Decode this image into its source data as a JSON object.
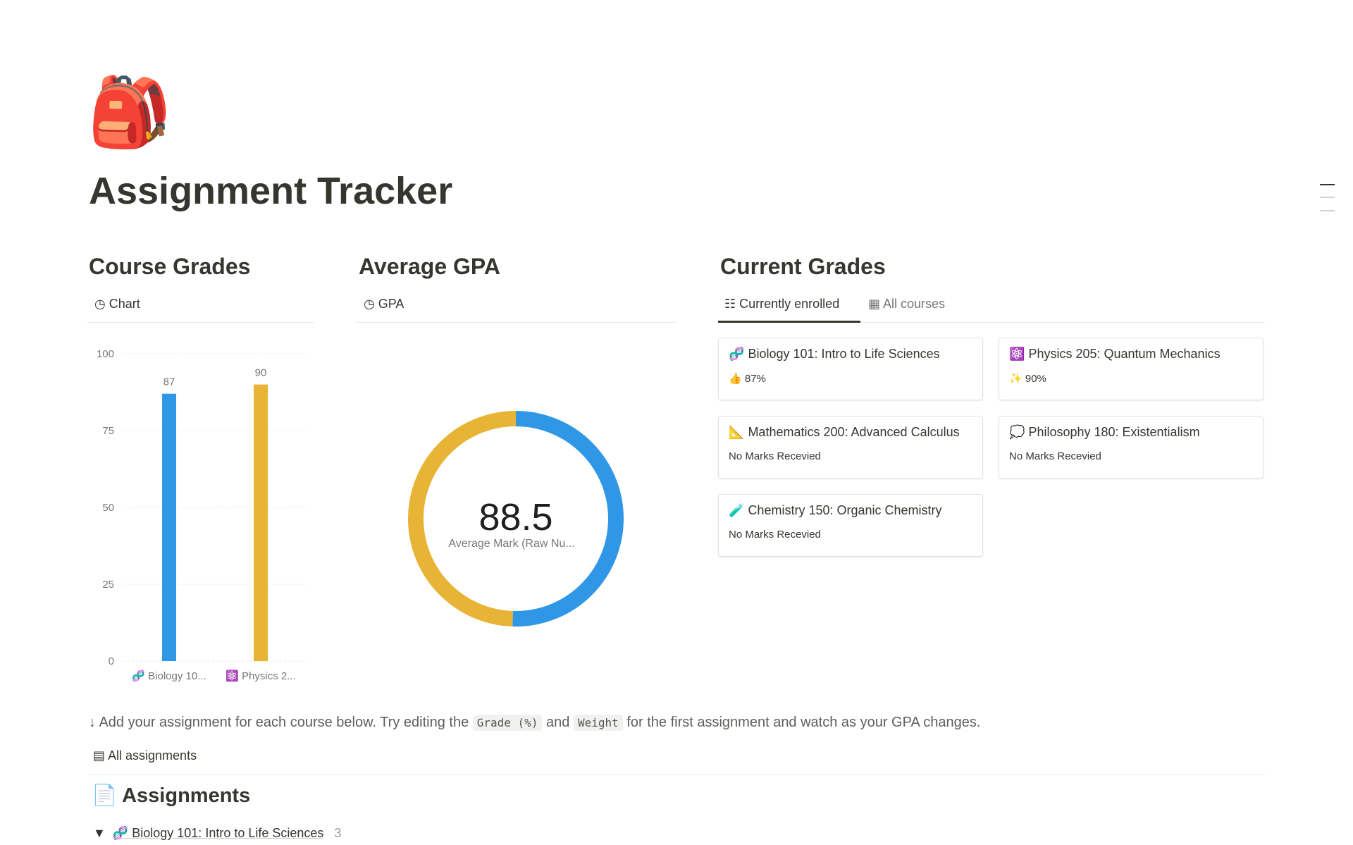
{
  "page": {
    "icon": "🎒",
    "title": "Assignment Tracker",
    "sections": {
      "course_grades": {
        "heading": "Course Grades",
        "tab": "Chart"
      },
      "average_gpa": {
        "heading": "Average GPA",
        "tab": "GPA"
      },
      "current_grades": {
        "heading": "Current Grades",
        "tabs": [
          "Currently enrolled",
          "All courses"
        ]
      }
    },
    "cards": [
      {
        "icon": "🧬",
        "title": "Biology 101: Intro to Life Sciences",
        "grade_icon": "👍",
        "grade": "87%"
      },
      {
        "icon": "⚛️",
        "title": "Physics 205: Quantum Mechanics",
        "grade_icon": "✨",
        "grade": "90%"
      },
      {
        "icon": "📐",
        "title": "Mathematics 200: Advanced Calculus",
        "grade_icon": null,
        "grade": "No Marks Recevied"
      },
      {
        "icon": "💭",
        "title": "Philosophy 180: Existentialism",
        "grade_icon": null,
        "grade": "No Marks Recevied"
      },
      {
        "icon": "🧪",
        "title": "Chemistry 150: Organic Chemistry",
        "grade_icon": null,
        "grade": "No Marks Recevied"
      }
    ],
    "note": [
      "↓ Add your assignment for each course below. Try editing the",
      "Grade (%)",
      "and",
      "Weight",
      "for the first assignment and watch as your GPA changes."
    ],
    "view_tab": "All assignments",
    "assignments": {
      "icon": "📄",
      "heading": "Assignments",
      "group": {
        "name": "🧬 Biology 101: Intro to Life Sciences",
        "count": "3"
      }
    }
  },
  "chart_data": [
    {
      "type": "bar",
      "categories": [
        "🧬 Biology 10...",
        "⚛️ Physics 2..."
      ],
      "series": [
        {
          "values": [
            87,
            90
          ],
          "colors": [
            "#2f97e6",
            "#e8b435"
          ]
        }
      ],
      "ylim": [
        0,
        100
      ],
      "yticks": [
        0,
        25,
        50,
        75,
        100
      ],
      "grid": true
    },
    {
      "type": "donut",
      "center_value": 88.5,
      "center_label": "Average Mark (Raw Nu...",
      "series": [
        {
          "values": [
            50.5,
            49.5
          ],
          "colors": [
            "#2f97e6",
            "#e8b435"
          ]
        }
      ]
    }
  ]
}
